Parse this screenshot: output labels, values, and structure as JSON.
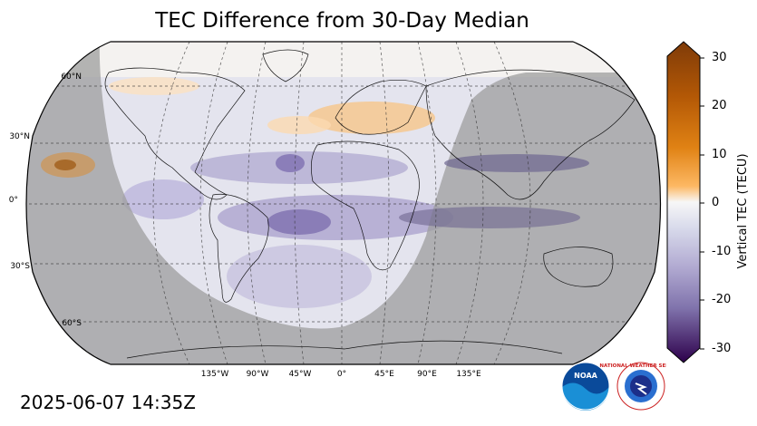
{
  "title": "TEC Difference from 30-Day Median",
  "timestamp": "2025-06-07 14:35Z",
  "map": {
    "projection": "Robinson",
    "lat_labels": [
      "60°N",
      "30°N",
      "0°",
      "30°S",
      "60°S"
    ],
    "lon_labels": [
      "135°W",
      "90°W",
      "45°W",
      "0°",
      "45°E",
      "90°E",
      "135°E"
    ],
    "night_shading": "gray overlay on night side",
    "colors": {
      "ocean_base": "#d9d9e6",
      "night": "#9c9c9c",
      "negative": "#5a3f8e",
      "positive": "#e08a2a"
    }
  },
  "colorbar": {
    "label": "Vertical TEC (TECU)",
    "ticks": [
      "30",
      "20",
      "10",
      "0",
      "-10",
      "-20",
      "-30"
    ],
    "range": [
      -30,
      30
    ],
    "colormap": "PuOr_r"
  },
  "logos": {
    "noaa": "NOAA",
    "nws": "NATIONAL WEATHER SERVICE"
  }
}
